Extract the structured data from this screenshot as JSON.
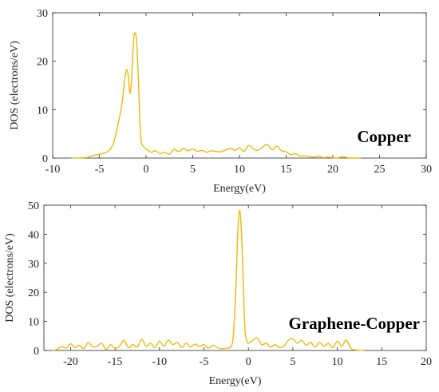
{
  "chart_data": [
    {
      "type": "line",
      "annotation": "Copper",
      "xlabel": "Energy(eV)",
      "ylabel": "DOS (electrons/eV)",
      "xlim": [
        -10,
        30
      ],
      "ylim": [
        0,
        30
      ],
      "xticks": [
        -10,
        -5,
        0,
        5,
        10,
        15,
        20,
        25,
        30
      ],
      "yticks": [
        0,
        10,
        20,
        30
      ],
      "line_color": "#F2B705",
      "series": [
        {
          "x": [
            -8.0,
            -6.5,
            -6.0,
            -5.5,
            -5.0,
            -4.5,
            -4.0,
            -3.5,
            -3.0,
            -2.6,
            -2.3,
            -2.1,
            -1.9,
            -1.75,
            -1.6,
            -1.45,
            -1.3,
            -1.1,
            -0.95,
            -0.8,
            -0.65,
            -0.5,
            -0.3,
            -0.1,
            0.2,
            0.6,
            1.0,
            1.5,
            2.0,
            2.5,
            3.0,
            3.5,
            4.0,
            4.5,
            5.0,
            5.5,
            6.0,
            6.5,
            7.0,
            8.0,
            9.0,
            9.5,
            10.0,
            10.5,
            11.0,
            11.5,
            12.0,
            12.5,
            13.0,
            13.5,
            14.0,
            14.5,
            15.0,
            15.5,
            16.0,
            16.5,
            17.0,
            17.5,
            18.0,
            18.5,
            19.0,
            19.5,
            20.0,
            20.5,
            21.0,
            21.5,
            22.0,
            23.0
          ],
          "y": [
            0.0,
            0.1,
            0.3,
            0.6,
            0.8,
            1.0,
            1.5,
            3.0,
            7.0,
            11.0,
            16.0,
            18.2,
            17.0,
            13.5,
            15.0,
            20.0,
            25.0,
            25.6,
            22.0,
            15.0,
            7.0,
            3.2,
            2.5,
            2.0,
            1.6,
            1.2,
            1.5,
            0.9,
            1.2,
            0.8,
            1.8,
            1.3,
            2.0,
            1.5,
            1.9,
            1.4,
            1.6,
            1.2,
            1.5,
            1.3,
            2.0,
            1.6,
            2.1,
            1.4,
            2.6,
            1.9,
            1.6,
            2.3,
            2.8,
            1.7,
            2.5,
            1.5,
            1.3,
            0.7,
            0.9,
            0.4,
            0.5,
            0.3,
            0.2,
            0.4,
            0.1,
            0.2,
            0.1,
            0.0,
            0.3,
            0.1,
            0.0,
            0.0
          ]
        }
      ]
    },
    {
      "type": "line",
      "annotation": "Graphene-Copper",
      "xlabel": "Energy(eV)",
      "ylabel": "DOS (electrons/eV)",
      "xlim": [
        -23,
        20
      ],
      "ylim": [
        0,
        50
      ],
      "xticks": [
        -20,
        -15,
        -10,
        -5,
        0,
        5,
        10,
        15,
        20
      ],
      "yticks": [
        0,
        10,
        20,
        30,
        40,
        50
      ],
      "line_color": "#F2B705",
      "series": [
        {
          "x": [
            -22.0,
            -21.5,
            -21.0,
            -20.5,
            -20.0,
            -19.5,
            -19.0,
            -18.5,
            -18.0,
            -17.5,
            -17.0,
            -16.5,
            -16.0,
            -15.5,
            -15.0,
            -14.5,
            -14.0,
            -13.5,
            -13.0,
            -12.5,
            -12.0,
            -11.5,
            -11.0,
            -10.5,
            -10.0,
            -9.5,
            -9.0,
            -8.5,
            -8.0,
            -7.5,
            -7.0,
            -6.5,
            -6.0,
            -5.5,
            -5.0,
            -4.5,
            -4.0,
            -3.5,
            -3.0,
            -2.5,
            -2.0,
            -1.7,
            -1.4,
            -1.2,
            -1.0,
            -0.8,
            -0.6,
            -0.4,
            -0.2,
            0.0,
            0.5,
            1.0,
            1.5,
            2.0,
            2.5,
            3.0,
            3.5,
            4.0,
            4.5,
            5.0,
            5.5,
            6.0,
            6.5,
            7.0,
            7.5,
            8.0,
            8.5,
            9.0,
            9.5,
            10.0,
            10.5,
            11.0,
            11.5,
            12.0,
            13.0
          ],
          "y": [
            0.0,
            0.4,
            1.5,
            0.8,
            2.3,
            1.0,
            1.8,
            0.6,
            2.8,
            1.2,
            1.5,
            2.5,
            0.3,
            2.0,
            0.8,
            1.5,
            3.5,
            1.0,
            2.0,
            1.2,
            3.8,
            1.5,
            2.5,
            1.0,
            3.2,
            1.5,
            3.6,
            2.0,
            2.8,
            1.0,
            2.5,
            1.2,
            2.2,
            1.4,
            2.0,
            0.8,
            1.8,
            1.0,
            0.6,
            0.8,
            1.2,
            5.0,
            22.0,
            40.0,
            48.2,
            42.0,
            25.0,
            8.0,
            3.5,
            2.5,
            3.5,
            4.3,
            2.0,
            2.5,
            1.2,
            2.0,
            1.0,
            1.5,
            3.5,
            4.0,
            2.5,
            3.5,
            1.8,
            2.8,
            1.2,
            2.8,
            1.5,
            2.4,
            1.0,
            3.2,
            1.5,
            3.6,
            0.8,
            0.2,
            0.0
          ]
        }
      ]
    }
  ]
}
